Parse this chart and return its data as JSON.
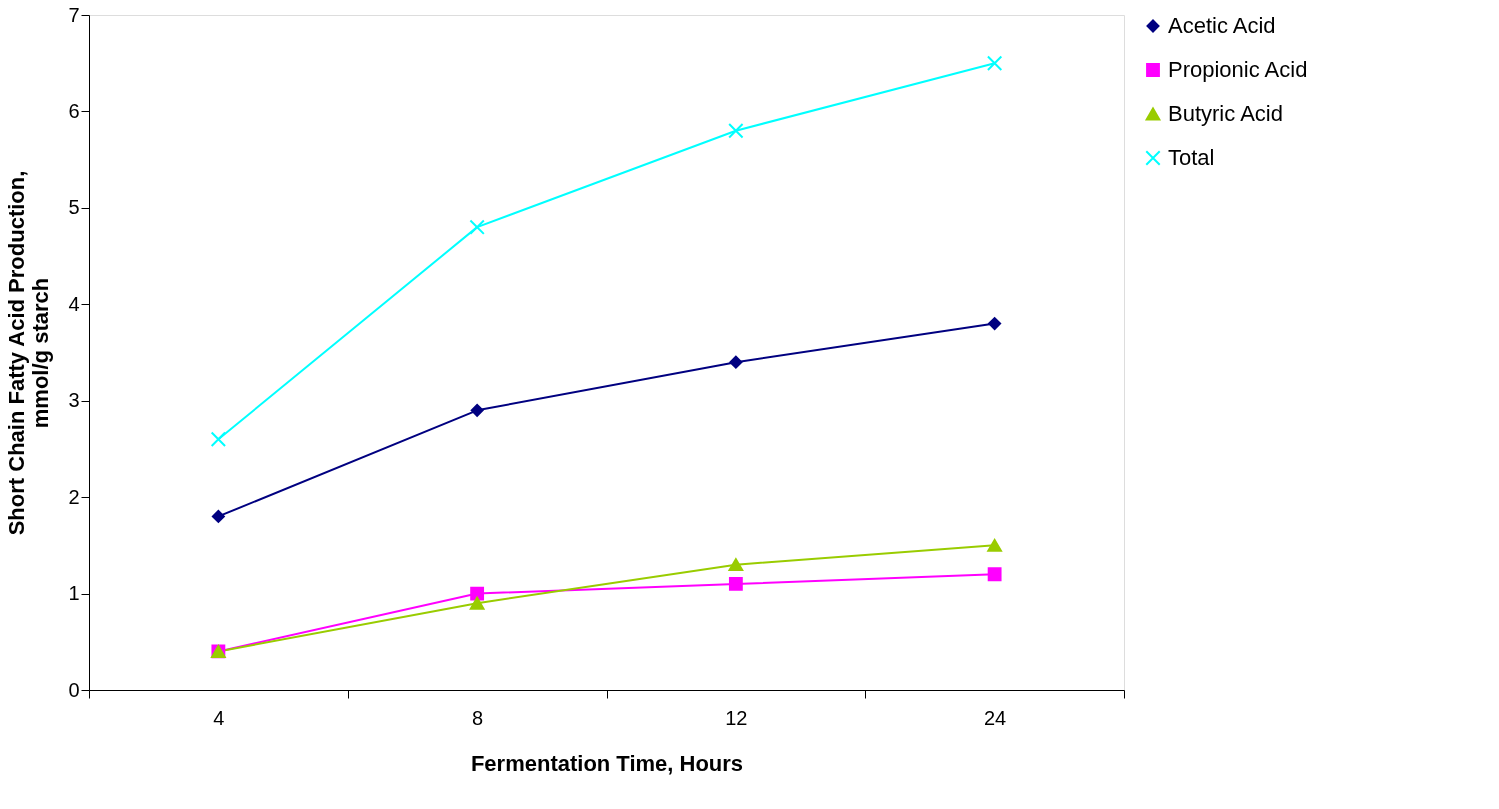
{
  "chart_data": {
    "type": "line",
    "xlabel": "Fermentation Time, Hours",
    "ylabel": "Short Chain Fatty Acid Production, mmol/g starch",
    "categories": [
      "4",
      "8",
      "12",
      "24"
    ],
    "series": [
      {
        "name": "Acetic Acid",
        "color": "#000080",
        "marker": "diamond",
        "values": [
          1.8,
          2.9,
          3.4,
          3.8
        ]
      },
      {
        "name": "Propionic Acid",
        "color": "#ff00ff",
        "marker": "square",
        "values": [
          0.4,
          1.0,
          1.1,
          1.2
        ]
      },
      {
        "name": "Butyric Acid",
        "color": "#99cc00",
        "marker": "triangle",
        "values": [
          0.4,
          0.9,
          1.3,
          1.5
        ]
      },
      {
        "name": "Total",
        "color": "#00ffff",
        "marker": "cross",
        "values": [
          2.6,
          4.8,
          5.8,
          6.5
        ]
      }
    ],
    "ylim": [
      0,
      7
    ],
    "yticks": [
      0,
      1,
      2,
      3,
      4,
      5,
      6,
      7
    ],
    "grid": false,
    "legend": "right",
    "line_style": "solid"
  }
}
